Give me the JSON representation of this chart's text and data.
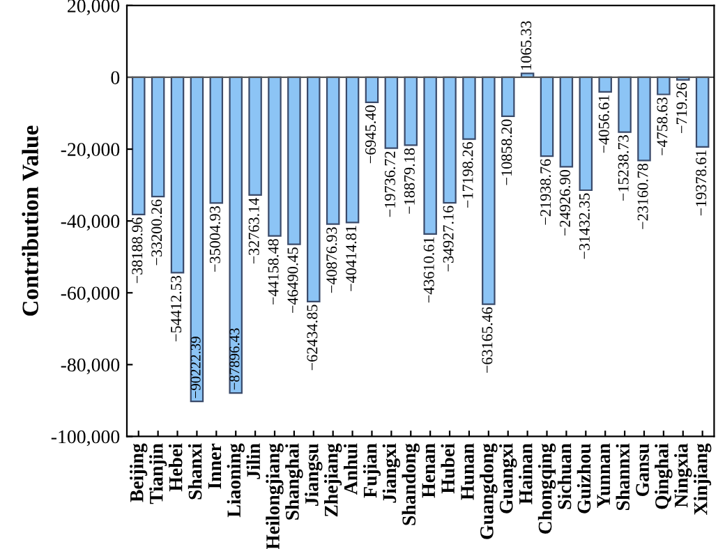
{
  "chart_data": {
    "type": "bar",
    "ylabel": "Contribution Value",
    "categories": [
      "Beijing",
      "Tianjin",
      "Hebei",
      "Shanxi",
      "Inner",
      "Liaoning",
      "Jilin",
      "Heilongjiang",
      "Shanghai",
      "Jiangsu",
      "Zhejiang",
      "Anhui",
      "Fujian",
      "Jiangxi",
      "Shandong",
      "Henan",
      "Hubei",
      "Hunan",
      "Guangdong",
      "Guangxi",
      "Hainan",
      "Chongqing",
      "Sichuan",
      "Guizhou",
      "Yunnan",
      "Shannxi",
      "Gansu",
      "Qinghai",
      "Ningxia",
      "Xinjiang"
    ],
    "values": [
      -38188.96,
      -33200.26,
      -54412.53,
      -90222.39,
      -35004.93,
      -87896.43,
      -32763.14,
      -44158.48,
      -46490.45,
      -62434.85,
      -40876.93,
      -40414.81,
      -6945.4,
      -19736.72,
      -18879.18,
      -43610.61,
      -34927.16,
      -17198.26,
      -63165.46,
      -10858.2,
      1065.33,
      -21938.76,
      -24926.9,
      -31432.35,
      -4056.61,
      -15238.73,
      -23160.78,
      -4758.63,
      -719.26,
      -19378.61
    ],
    "color": "#8cc4f5",
    "ylim": [
      -100000,
      20000
    ],
    "yticks": [
      {
        "value": -100000,
        "label": "-100,000"
      },
      {
        "value": -80000,
        "label": "-80,000"
      },
      {
        "value": -60000,
        "label": "-60,000"
      },
      {
        "value": -40000,
        "label": "-40,000"
      },
      {
        "value": -20000,
        "label": "-20,000"
      },
      {
        "value": 0,
        "label": "0"
      },
      {
        "value": 20000,
        "label": "20,000"
      }
    ],
    "value_labels": [
      "−38188.96",
      "−33200.26",
      "−54412.53",
      "−90222.39",
      "−35004.93",
      "−87896.43",
      "−32763.14",
      "−44158.48",
      "−46490.45",
      "−62434.85",
      "−40876.93",
      "−40414.81",
      "−6945.40",
      "−19736.72",
      "−18879.18",
      "−43610.61",
      "−34927.16",
      "−17198.26",
      "−63165.46",
      "−10858.20",
      "1065.33",
      "−21938.76",
      "−24926.90",
      "−31432.35",
      "−4056.61",
      "−15238.73",
      "−23160.78",
      "−4758.63",
      "−719.26",
      "−19378.61"
    ],
    "ref_lines": [
      {
        "axis": "y",
        "value": 0,
        "color": "#555555"
      }
    ]
  }
}
